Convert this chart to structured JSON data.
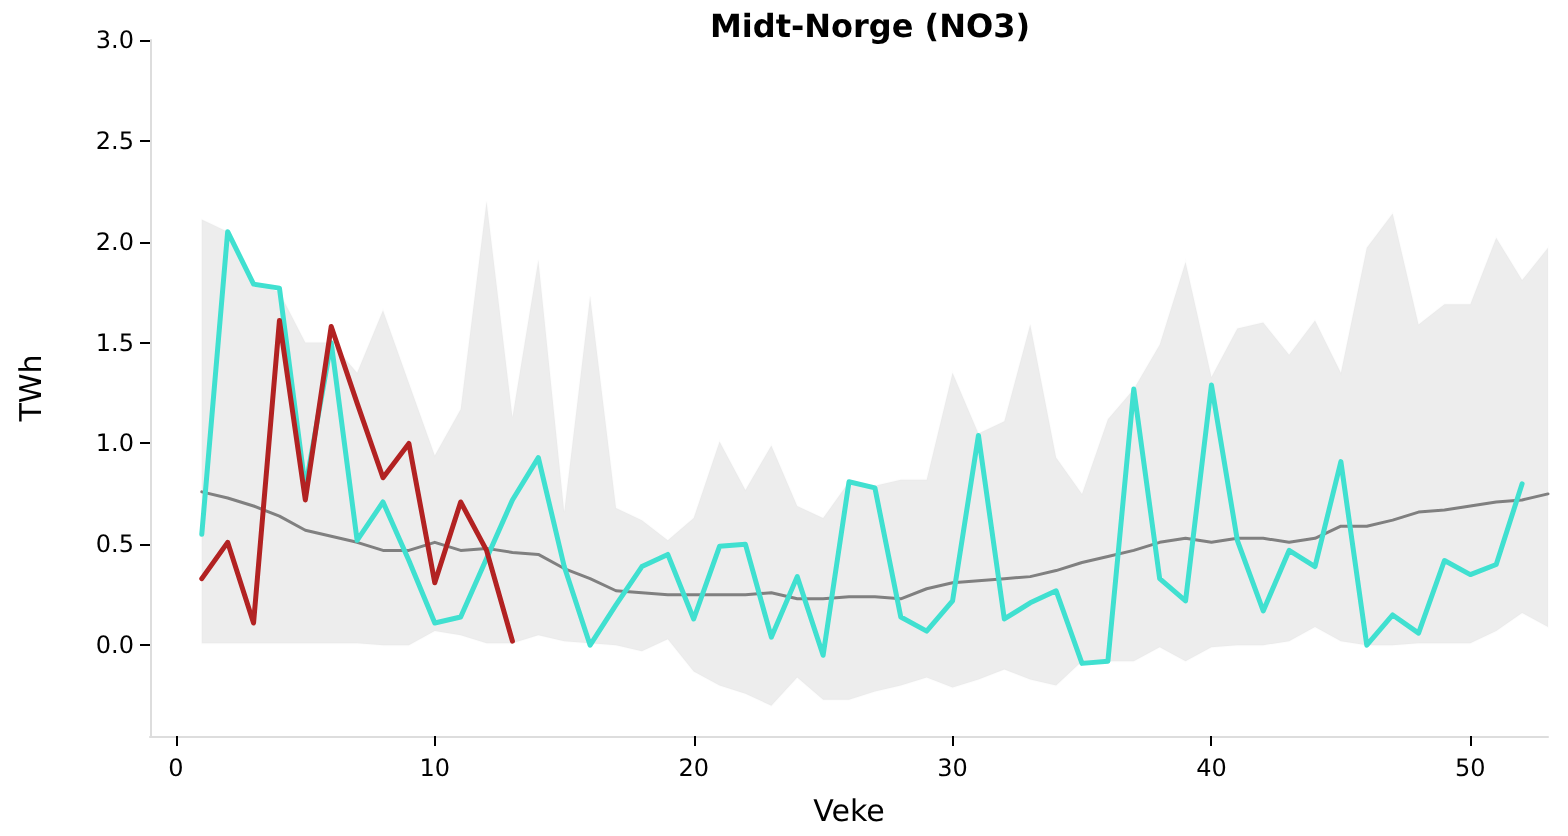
{
  "chart_data": {
    "type": "line",
    "title": "Midt-Norge (NO3)",
    "xlabel": "Veke",
    "ylabel": "TWh",
    "xlim": [
      -1,
      53
    ],
    "xticks": [
      0,
      10,
      20,
      30,
      40,
      50
    ],
    "ylim": [
      -0.45,
      3.0
    ],
    "yticks": [
      {
        "value": 0,
        "label": "0.0"
      },
      {
        "value": 0.5,
        "label": "0.5"
      },
      {
        "value": 1,
        "label": "1.0"
      },
      {
        "value": 1.5,
        "label": "1.5"
      },
      {
        "value": 2,
        "label": "2.0"
      },
      {
        "value": 2.5,
        "label": "2.5"
      },
      {
        "value": 3,
        "label": "3.0"
      }
    ],
    "series": [
      {
        "color": "#808080",
        "x": [
          1,
          2,
          3,
          4,
          5,
          6,
          7,
          8,
          9,
          10,
          11,
          12,
          13,
          14,
          15,
          16,
          17,
          18,
          19,
          20,
          21,
          22,
          23,
          24,
          25,
          26,
          27,
          28,
          29,
          30,
          31,
          32,
          33,
          34,
          35,
          36,
          37,
          38,
          39,
          40,
          41,
          42,
          43,
          44,
          45,
          46,
          47,
          48,
          49,
          50,
          51,
          52,
          53
        ],
        "values": [
          0.76,
          0.73,
          0.69,
          0.64,
          0.57,
          0.54,
          0.51,
          0.47,
          0.47,
          0.51,
          0.47,
          0.48,
          0.46,
          0.45,
          0.38,
          0.33,
          0.27,
          0.26,
          0.25,
          0.25,
          0.25,
          0.25,
          0.26,
          0.23,
          0.23,
          0.24,
          0.24,
          0.23,
          0.28,
          0.31,
          0.32,
          0.33,
          0.34,
          0.37,
          0.41,
          0.44,
          0.47,
          0.51,
          0.53,
          0.51,
          0.53,
          0.53,
          0.51,
          0.53,
          0.59,
          0.59,
          0.62,
          0.66,
          0.67,
          0.69,
          0.71,
          0.72,
          0.75
        ],
        "lower": [
          0.01,
          0.01,
          0.01,
          0.01,
          0.01,
          0.01,
          0.01,
          0.0,
          0.0,
          0.07,
          0.05,
          0.01,
          0.01,
          0.05,
          0.02,
          0.01,
          0.0,
          -0.03,
          0.03,
          -0.13,
          -0.2,
          -0.24,
          -0.3,
          -0.16,
          -0.27,
          -0.27,
          -0.23,
          -0.2,
          -0.16,
          -0.21,
          -0.17,
          -0.12,
          -0.17,
          -0.2,
          -0.08,
          -0.08,
          -0.08,
          -0.01,
          -0.08,
          -0.01,
          0.0,
          0.0,
          0.02,
          0.09,
          0.02,
          0.0,
          0.0,
          0.01,
          0.01,
          0.01,
          0.07,
          0.16,
          0.09
        ],
        "upper": [
          2.11,
          2.05,
          1.8,
          1.75,
          1.5,
          1.5,
          1.35,
          1.66,
          1.3,
          0.94,
          1.17,
          2.2,
          1.13,
          1.91,
          0.66,
          1.73,
          0.68,
          0.62,
          0.52,
          0.63,
          1.01,
          0.77,
          0.99,
          0.69,
          0.63,
          0.81,
          0.79,
          0.82,
          0.82,
          1.35,
          1.05,
          1.11,
          1.59,
          0.93,
          0.75,
          1.12,
          1.27,
          1.49,
          1.9,
          1.33,
          1.57,
          1.6,
          1.44,
          1.61,
          1.35,
          1.97,
          2.14,
          1.59,
          1.69,
          1.69,
          2.02,
          1.81,
          1.97
        ]
      },
      {
        "color": "#40e0d0",
        "x": [
          1,
          2,
          3,
          4,
          5,
          6,
          7,
          8,
          9,
          10,
          11,
          12,
          13,
          14,
          15,
          16,
          17,
          18,
          19,
          20,
          21,
          22,
          23,
          24,
          25,
          26,
          27,
          28,
          29,
          30,
          31,
          32,
          33,
          34,
          35,
          36,
          37,
          38,
          39,
          40,
          41,
          42,
          43,
          44,
          45,
          46,
          47,
          48,
          49,
          50,
          51,
          52
        ],
        "values": [
          0.55,
          2.05,
          1.79,
          1.77,
          0.78,
          1.5,
          0.52,
          0.71,
          0.42,
          0.11,
          0.14,
          0.43,
          0.72,
          0.93,
          0.39,
          0.0,
          0.2,
          0.39,
          0.45,
          0.13,
          0.49,
          0.5,
          0.04,
          0.34,
          -0.05,
          0.81,
          0.78,
          0.14,
          0.07,
          0.22,
          1.04,
          0.13,
          0.21,
          0.27,
          -0.09,
          -0.08,
          1.27,
          0.33,
          0.22,
          1.29,
          0.52,
          0.17,
          0.47,
          0.39,
          0.91,
          0.0,
          0.15,
          0.06,
          0.42,
          0.35,
          0.4,
          0.8
        ]
      },
      {
        "color": "#b22222",
        "x": [
          1,
          2,
          3,
          4,
          5,
          6,
          7,
          8,
          9,
          10,
          11,
          12,
          13
        ],
        "values": [
          0.33,
          0.51,
          0.11,
          1.61,
          0.72,
          1.58,
          1.2,
          0.83,
          1.0,
          0.31,
          0.71,
          0.47,
          0.02
        ]
      }
    ]
  }
}
